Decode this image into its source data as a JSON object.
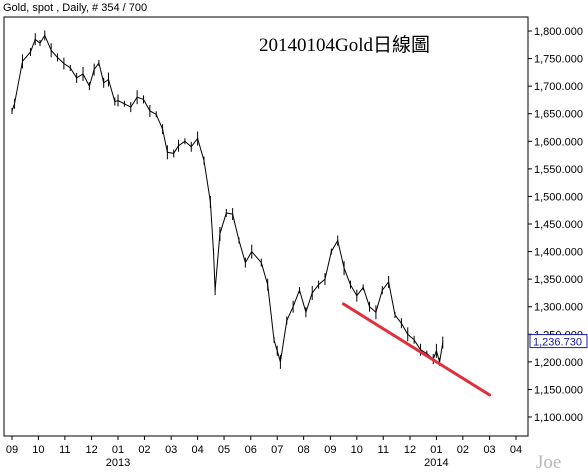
{
  "header": {
    "label": "Gold, spot , Daily, # 354 / 700"
  },
  "watermark": "Joe",
  "chart_data": {
    "type": "line",
    "title": "20140104Gold日線圖",
    "xlabel": "",
    "ylabel": "",
    "ylim": [
      1080,
      1820
    ],
    "yticks": [
      "1,800.000",
      "1,750.000",
      "1,700.000",
      "1,650.000",
      "1,600.000",
      "1,550.000",
      "1,500.000",
      "1,450.000",
      "1,400.000",
      "1,350.000",
      "1,300.000",
      "1,250.000",
      "1,200.000",
      "1,150.000",
      "1,100.000"
    ],
    "ytick_values": [
      1800,
      1750,
      1700,
      1650,
      1600,
      1550,
      1500,
      1450,
      1400,
      1350,
      1300,
      1250,
      1200,
      1150,
      1100
    ],
    "xticks": [
      "09",
      "10",
      "11",
      "12",
      "01",
      "02",
      "03",
      "04",
      "05",
      "06",
      "07",
      "08",
      "09",
      "10",
      "11",
      "12",
      "01",
      "02",
      "03",
      "04"
    ],
    "xtick_values": [
      2012.667,
      2012.75,
      2012.833,
      2012.917,
      2013.0,
      2013.083,
      2013.167,
      2013.25,
      2013.333,
      2013.417,
      2013.5,
      2013.583,
      2013.667,
      2013.75,
      2013.833,
      2013.917,
      2014.0,
      2014.083,
      2014.167,
      2014.25
    ],
    "year_labels": [
      {
        "label": "2013",
        "x": 2013.0
      },
      {
        "label": "2014",
        "x": 2014.0
      }
    ],
    "xlim": [
      2012.62,
      2014.3
    ],
    "last_value": "1,236.730",
    "series": [
      {
        "x": [
          2012.667,
          2012.675,
          2012.7,
          2012.725,
          2012.74,
          2012.755,
          2012.77,
          2012.79,
          2012.81,
          2012.83,
          2012.85,
          2012.87,
          2012.89,
          2012.91,
          2012.925,
          2012.94,
          2012.955,
          2012.97,
          2012.99,
          2013.0,
          2013.02,
          2013.04,
          2013.06,
          2013.08,
          2013.1,
          2013.12,
          2013.14,
          2013.155,
          2013.175,
          2013.19,
          2013.21,
          2013.23,
          2013.25,
          2013.27,
          2013.29,
          2013.3,
          2013.305,
          2013.32,
          2013.34,
          2013.36,
          2013.38,
          2013.4,
          2013.42,
          2013.45,
          2013.47,
          2013.49,
          2013.5,
          2013.51,
          2013.53,
          2013.55,
          2013.57,
          2013.59,
          2013.61,
          2013.63,
          2013.65,
          2013.67,
          2013.69,
          2013.71,
          2013.73,
          2013.75,
          2013.77,
          2013.79,
          2013.81,
          2013.83,
          2013.85,
          2013.87,
          2013.89,
          2013.91,
          2013.93,
          2013.95,
          2013.97,
          2013.99,
          2014.0,
          2014.01,
          2014.02
        ],
        "values": [
          1655,
          1668,
          1745,
          1762,
          1785,
          1778,
          1792,
          1765,
          1752,
          1741,
          1733,
          1715,
          1722,
          1700,
          1730,
          1742,
          1706,
          1712,
          1672,
          1674,
          1668,
          1662,
          1680,
          1676,
          1655,
          1649,
          1622,
          1580,
          1578,
          1592,
          1600,
          1590,
          1605,
          1565,
          1490,
          1400,
          1330,
          1432,
          1470,
          1468,
          1420,
          1380,
          1400,
          1380,
          1340,
          1240,
          1220,
          1200,
          1275,
          1300,
          1330,
          1290,
          1325,
          1340,
          1350,
          1400,
          1420,
          1370,
          1340,
          1320,
          1335,
          1300,
          1290,
          1330,
          1345,
          1285,
          1270,
          1250,
          1240,
          1222,
          1215,
          1205,
          1220,
          1200,
          1235
        ]
      },
      {
        "name": "",
        "x": [
          2013.708,
          2014.167
        ],
        "values": [
          1305,
          1140
        ]
      }
    ]
  }
}
